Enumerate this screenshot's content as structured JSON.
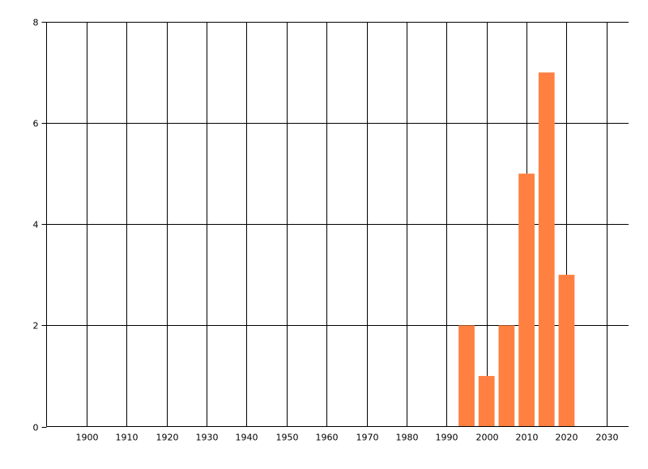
{
  "chart_data": {
    "type": "bar",
    "title": "",
    "xlabel": "",
    "ylabel": "",
    "x": [
      1995,
      2000,
      2005,
      2010,
      2015,
      2020
    ],
    "values": [
      2,
      1,
      2,
      5,
      7,
      3
    ],
    "bar_width_years": 4,
    "xlim": [
      1890,
      2035.5
    ],
    "ylim": [
      0,
      8
    ],
    "xticks": [
      1900,
      1910,
      1920,
      1930,
      1940,
      1950,
      1960,
      1970,
      1980,
      1990,
      2000,
      2010,
      2020,
      2030
    ],
    "yticks": [
      0,
      2,
      4,
      6,
      8
    ],
    "grid": true,
    "bar_color": "#FF8040",
    "grid_color": "#000000"
  }
}
